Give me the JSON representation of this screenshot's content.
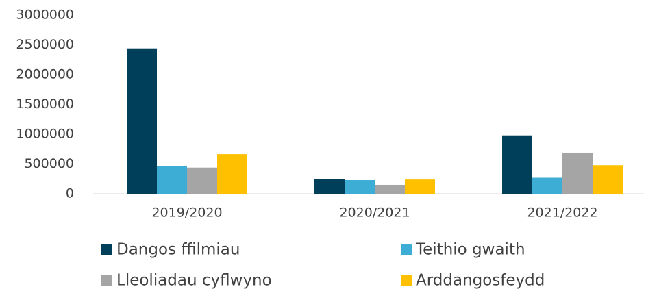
{
  "chart_data": {
    "type": "bar",
    "categories": [
      "2019/2020",
      "2020/2021",
      "2021/2022"
    ],
    "series": [
      {
        "name": "Dangos ffilmiau",
        "color": "#003f5a",
        "values": [
          2440000,
          250000,
          980000
        ]
      },
      {
        "name": "Teithio gwaith",
        "color": "#3eadd5",
        "values": [
          460000,
          230000,
          270000
        ]
      },
      {
        "name": "Lleoliadau cyflwyno",
        "color": "#a5a5a5",
        "values": [
          440000,
          150000,
          690000
        ]
      },
      {
        "name": "Arddangosfeydd",
        "color": "#ffc000",
        "values": [
          665000,
          240000,
          480000
        ]
      }
    ],
    "ylim": [
      0,
      3000000
    ],
    "yticks": [
      0,
      500000,
      1000000,
      1500000,
      2000000,
      2500000,
      3000000
    ],
    "grid": false,
    "legend": "bottom"
  }
}
